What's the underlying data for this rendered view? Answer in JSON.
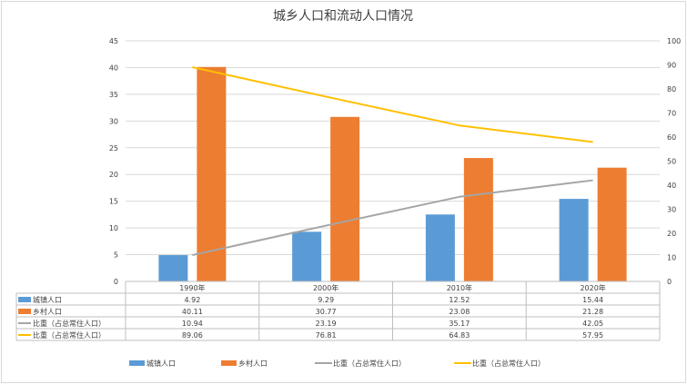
{
  "chart_data": {
    "type": "bar",
    "title": "城乡人口和流动人口情况",
    "categories": [
      "1990年",
      "2000年",
      "2010年",
      "2020年"
    ],
    "ylim": [
      0,
      45
    ],
    "yticks": [
      0,
      5,
      10,
      15,
      20,
      25,
      30,
      35,
      40,
      45
    ],
    "y2lim": [
      0,
      100
    ],
    "y2ticks": [
      0,
      10,
      20,
      30,
      40,
      50,
      60,
      70,
      80,
      90,
      100
    ],
    "grid": true,
    "legend": "bottom",
    "data_table": true,
    "series": [
      {
        "name": "城镇人口",
        "type": "bar",
        "axis": "left",
        "color": "#5b9bd5",
        "values": [
          4.92,
          9.29,
          12.52,
          15.44
        ],
        "labels": [
          "4.92",
          "9.29",
          "12.52",
          "15.44"
        ]
      },
      {
        "name": "乡村人口",
        "type": "bar",
        "axis": "left",
        "color": "#ed7d31",
        "values": [
          40.11,
          30.77,
          23.08,
          21.28
        ],
        "labels": [
          "40.11",
          "30.77",
          "23.08",
          "21.28"
        ]
      },
      {
        "name": "比重（占总常住人口）",
        "type": "line",
        "axis": "right",
        "color": "#a5a5a5",
        "values": [
          10.94,
          23.19,
          35.17,
          42.05
        ],
        "labels": [
          "10.94",
          "23.19",
          "35.17",
          "42.05"
        ]
      },
      {
        "name": "比重（占总常住人口）",
        "type": "line",
        "axis": "right",
        "color": "#ffc000",
        "values": [
          89.06,
          76.81,
          64.83,
          57.95
        ],
        "labels": [
          "89.06",
          "76.81",
          "64.83",
          "57.95"
        ]
      }
    ]
  }
}
